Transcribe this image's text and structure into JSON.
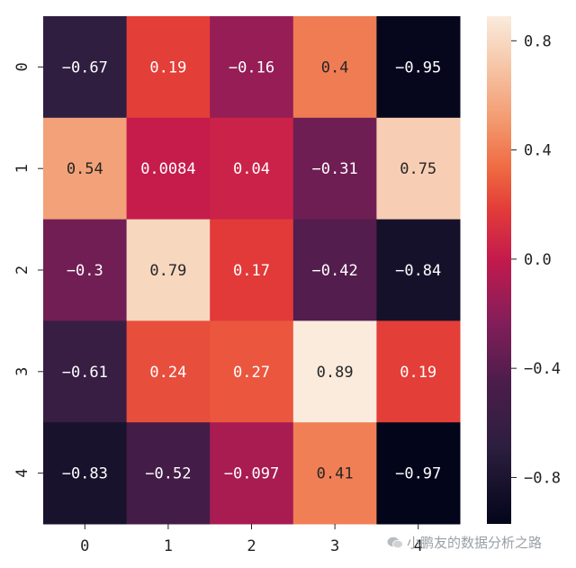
{
  "chart_data": {
    "type": "heatmap",
    "title": "",
    "xlabel": "",
    "ylabel": "",
    "x_categories": [
      "0",
      "1",
      "2",
      "3",
      "4"
    ],
    "y_categories": [
      "0",
      "1",
      "2",
      "3",
      "4"
    ],
    "values": [
      [
        -0.67,
        0.19,
        -0.16,
        0.4,
        -0.95
      ],
      [
        0.54,
        0.0084,
        0.04,
        -0.31,
        0.75
      ],
      [
        -0.3,
        0.79,
        0.17,
        -0.42,
        -0.84
      ],
      [
        -0.61,
        0.24,
        0.27,
        0.89,
        0.19
      ],
      [
        -0.83,
        -0.52,
        -0.097,
        0.41,
        -0.97
      ]
    ],
    "annotations": [
      [
        "−0.67",
        "0.19",
        "−0.16",
        "0.4",
        "−0.95"
      ],
      [
        "0.54",
        "0.0084",
        "0.04",
        "−0.31",
        "0.75"
      ],
      [
        "−0.3",
        "0.79",
        "0.17",
        "−0.42",
        "−0.84"
      ],
      [
        "−0.61",
        "0.24",
        "0.27",
        "0.89",
        "0.19"
      ],
      [
        "−0.83",
        "−0.52",
        "−0.097",
        "0.41",
        "−0.97"
      ]
    ],
    "colorbar": {
      "vmin": -0.97,
      "vmax": 0.89,
      "ticks": [
        0.8,
        0.4,
        0.0,
        -0.4,
        -0.8
      ],
      "tick_labels": [
        "0.8",
        "0.4",
        "0.0",
        "−0.4",
        "−0.8"
      ],
      "colormap": "rocket"
    },
    "grid": false,
    "legend": "colorbar-right"
  },
  "watermark": {
    "text": "小鹏友的数据分析之路",
    "icon": "wechat-icon"
  }
}
